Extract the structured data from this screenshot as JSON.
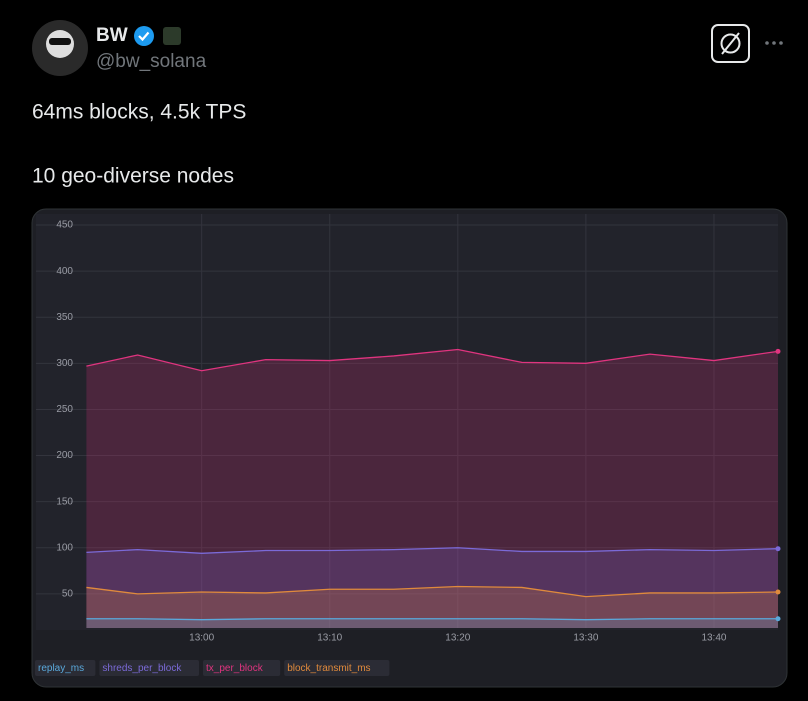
{
  "tweet": {
    "name": "BW",
    "handle": "@bw_solana",
    "text": [
      "64ms blocks, 4.5k TPS",
      "10 geo-diverse nodes"
    ]
  },
  "chart_data": {
    "type": "area",
    "x": [
      771,
      775,
      780,
      785,
      790,
      795,
      800,
      805,
      810,
      815,
      820,
      825
    ],
    "xlim": [
      770.5,
      825
    ],
    "xticks": [
      {
        "value": 780,
        "label": "13:00"
      },
      {
        "value": 790,
        "label": "13:10"
      },
      {
        "value": 800,
        "label": "13:20"
      },
      {
        "value": 810,
        "label": "13:30"
      },
      {
        "value": 820,
        "label": "13:40"
      }
    ],
    "ylim": [
      13,
      450
    ],
    "yticks": [
      50,
      100,
      150,
      200,
      250,
      300,
      350,
      400,
      450
    ],
    "grid": true,
    "legend": "bottom-left",
    "series": [
      {
        "name": "replay_ms",
        "color": "#5aa9dc",
        "values": [
          23,
          23,
          22,
          23,
          23,
          23,
          23,
          23,
          22,
          23,
          23,
          23
        ]
      },
      {
        "name": "shreds_per_block",
        "color": "#7b6ad8",
        "values": [
          95,
          98,
          94,
          97,
          97,
          98,
          100,
          96,
          96,
          98,
          97,
          99
        ]
      },
      {
        "name": "tx_per_block",
        "color": "#e0347f",
        "values": [
          297,
          309,
          292,
          304,
          303,
          308,
          315,
          301,
          300,
          310,
          303,
          313
        ]
      },
      {
        "name": "block_transmit_ms",
        "color": "#e08a3c",
        "values": [
          57,
          50,
          52,
          51,
          55,
          55,
          58,
          57,
          47,
          51,
          51,
          52
        ]
      }
    ]
  }
}
